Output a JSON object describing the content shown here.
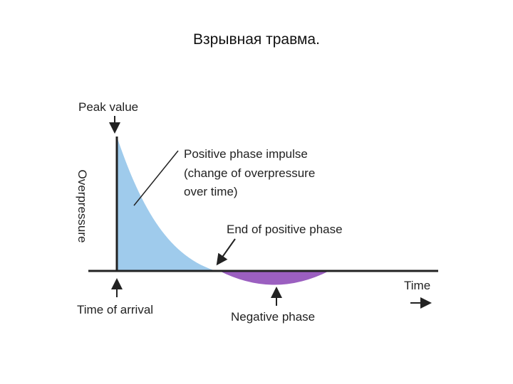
{
  "slide": {
    "title": "Взрывная травма."
  },
  "diagram": {
    "y_axis_label": "Overpressure",
    "x_axis_label": "Time",
    "peak_label": "Peak value",
    "arrival_label": "Time of arrival",
    "impulse_label": [
      "Positive phase impulse",
      "(change of overpressure",
      "over time)"
    ],
    "end_positive_label": "End of positive phase",
    "negative_label": "Negative phase",
    "colors": {
      "positive_fill": "#9fcbec",
      "negative_fill": "#9b5fc0",
      "axis": "#222222"
    },
    "icons": [
      "down-arrow-icon",
      "up-arrow-icon",
      "diagonal-arrow-icon",
      "right-arrow-icon"
    ]
  }
}
